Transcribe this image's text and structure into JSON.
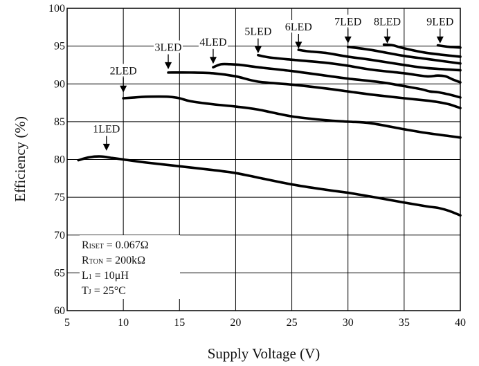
{
  "chart_data": {
    "type": "line",
    "xlabel": "Supply Voltage (V)",
    "ylabel": "Efficiency (%)",
    "xlim": [
      5,
      40
    ],
    "ylim": [
      60,
      100
    ],
    "xticks": [
      5,
      10,
      15,
      20,
      25,
      30,
      35,
      40
    ],
    "yticks": [
      60,
      65,
      70,
      75,
      80,
      85,
      90,
      95,
      100
    ],
    "grid": true,
    "conditions": [
      {
        "main": "R",
        "sub": "ISET",
        "rest": " = 0.067Ω"
      },
      {
        "main": "R",
        "sub": "TON",
        "rest": " = 200kΩ"
      },
      {
        "main": "L",
        "sub": "1",
        "rest": " = 10μH"
      },
      {
        "main": "T",
        "sub": "J",
        "rest": " = 25°C"
      }
    ],
    "series": [
      {
        "name": "1LED",
        "label_at": [
          8.5,
          81.1
        ],
        "x": [
          6,
          7,
          8,
          9,
          10,
          12,
          15,
          18,
          20,
          22,
          25,
          28,
          30,
          32,
          35,
          37,
          38,
          39,
          40
        ],
        "y": [
          79.9,
          80.3,
          80.4,
          80.2,
          80.0,
          79.6,
          79.1,
          78.6,
          78.2,
          77.6,
          76.7,
          76.0,
          75.6,
          75.1,
          74.3,
          73.8,
          73.6,
          73.2,
          72.6
        ]
      },
      {
        "name": "2LED",
        "label_at": [
          10,
          88.8
        ],
        "x": [
          10,
          11,
          12,
          14,
          15,
          16,
          18,
          20,
          22,
          25,
          28,
          30,
          32,
          35,
          37,
          39,
          40
        ],
        "y": [
          88.1,
          88.2,
          88.3,
          88.3,
          88.1,
          87.7,
          87.3,
          87.0,
          86.6,
          85.7,
          85.2,
          85.0,
          84.8,
          84.0,
          83.5,
          83.1,
          82.9
        ]
      },
      {
        "name": "3LED",
        "label_at": [
          14,
          91.9
        ],
        "x": [
          14,
          16,
          18,
          20,
          22,
          25,
          28,
          30,
          32,
          35,
          37,
          38,
          39,
          40
        ],
        "y": [
          91.5,
          91.5,
          91.4,
          91.0,
          90.3,
          89.9,
          89.4,
          89.0,
          88.6,
          88.1,
          87.8,
          87.6,
          87.3,
          86.8
        ]
      },
      {
        "name": "4LED",
        "label_at": [
          18,
          92.6
        ],
        "x": [
          18,
          18.7,
          19.5,
          20.5,
          22,
          25,
          28,
          30,
          33,
          35,
          36.5,
          37.3,
          38,
          39,
          40
        ],
        "y": [
          92.2,
          92.6,
          92.6,
          92.5,
          92.2,
          91.7,
          91.1,
          90.7,
          90.2,
          89.7,
          89.3,
          89.0,
          88.9,
          88.6,
          88.2
        ]
      },
      {
        "name": "5LED",
        "label_at": [
          22,
          94.0
        ],
        "x": [
          22,
          23,
          25,
          28,
          30,
          32,
          35,
          37,
          38,
          38.7,
          39.3,
          40
        ],
        "y": [
          93.8,
          93.5,
          93.2,
          92.8,
          92.4,
          91.9,
          91.4,
          91.0,
          91.1,
          91.0,
          90.6,
          90.2
        ]
      },
      {
        "name": "6LED",
        "label_at": [
          25.6,
          94.6
        ],
        "x": [
          25.6,
          26.5,
          28,
          30,
          32,
          35,
          37,
          40
        ],
        "y": [
          94.5,
          94.3,
          94.1,
          93.6,
          93.2,
          92.5,
          92.1,
          91.8
        ]
      },
      {
        "name": "7LED",
        "label_at": [
          30,
          95.3
        ],
        "x": [
          30,
          32,
          35,
          37,
          40
        ],
        "y": [
          94.9,
          94.5,
          93.7,
          93.3,
          92.7
        ]
      },
      {
        "name": "8LED",
        "label_at": [
          33.5,
          95.3
        ],
        "x": [
          33.2,
          34,
          35,
          37,
          40
        ],
        "y": [
          95.2,
          95.1,
          94.7,
          94.1,
          93.6
        ]
      },
      {
        "name": "9LED",
        "label_at": [
          38.2,
          95.3
        ],
        "x": [
          38,
          39,
          40
        ],
        "y": [
          95.1,
          94.9,
          94.8
        ]
      }
    ]
  }
}
